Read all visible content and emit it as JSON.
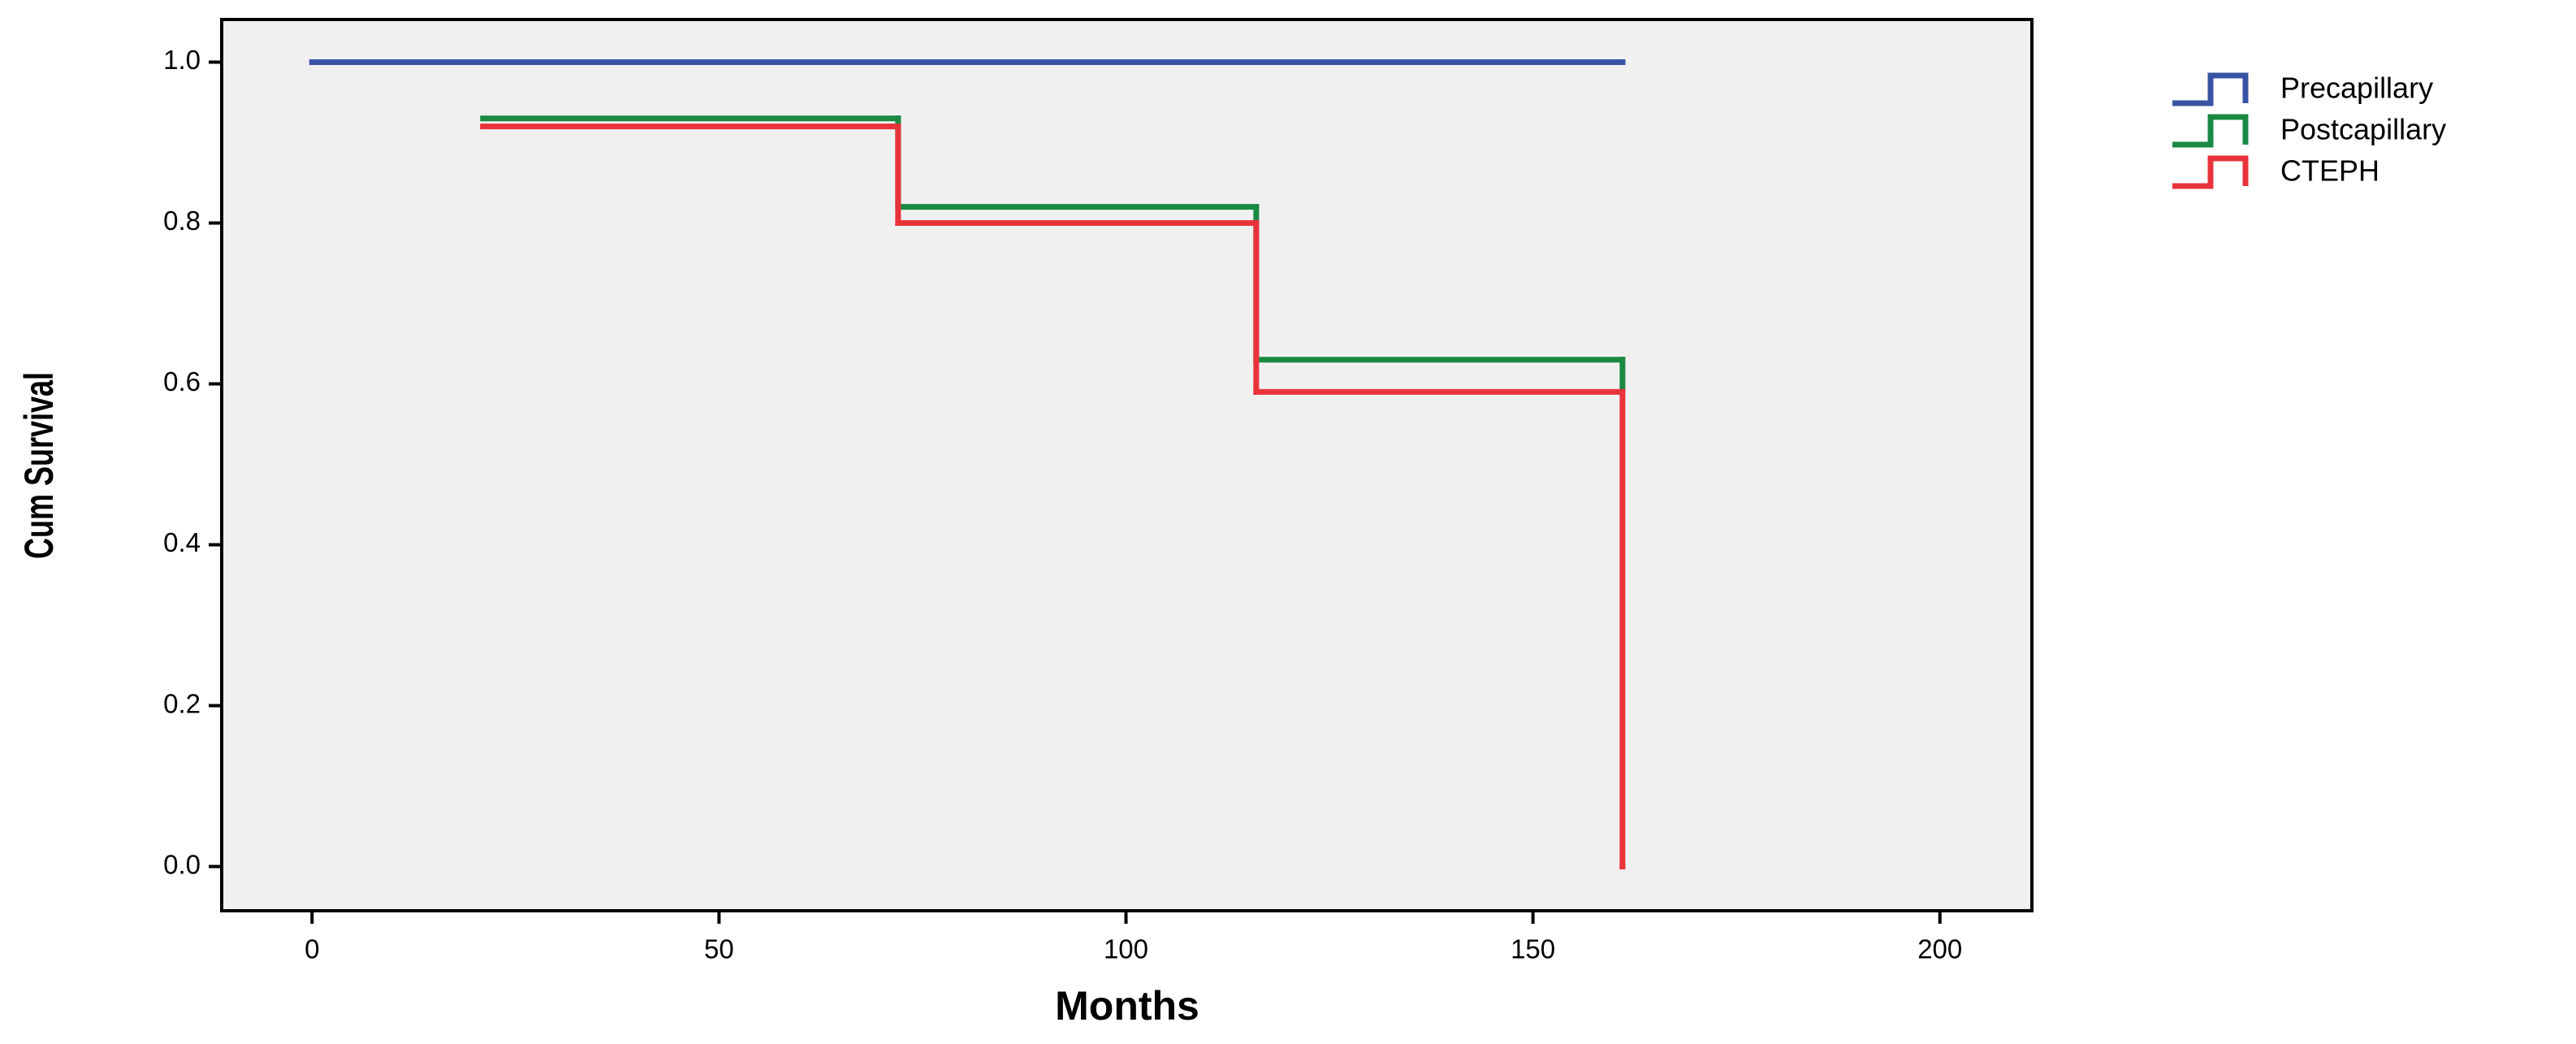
{
  "chart_data": {
    "type": "step",
    "x_label": "Months",
    "y_label": "Cum Survival",
    "xlim": [
      -11.1,
      211.3
    ],
    "ylim": [
      -0.055,
      1.053
    ],
    "xticks": [
      0,
      50,
      100,
      150,
      200
    ],
    "yticks": [
      {
        "value": 0,
        "label": "0.0"
      },
      {
        "value": 0.2,
        "label": "0.2"
      },
      {
        "value": 0.4,
        "label": "0.4"
      },
      {
        "value": 0.6,
        "label": "0.6"
      },
      {
        "value": 0.8,
        "label": "0.8"
      },
      {
        "value": 1,
        "label": "1.0"
      }
    ],
    "grid": false,
    "legend": "outside-right",
    "series": [
      {
        "name": "Precapillary",
        "color": "#3953a4",
        "x": [
          0,
          161
        ],
        "values": [
          1.0,
          1.0
        ]
      },
      {
        "name": "Postcapillary",
        "color": "#1a8a43",
        "x": [
          21,
          72,
          116,
          161
        ],
        "values": [
          0.93,
          0.82,
          0.63,
          0.59
        ]
      },
      {
        "name": "CTEPH",
        "color": "#e8333a",
        "x": [
          21,
          72,
          116,
          161
        ],
        "values": [
          0.92,
          0.8,
          0.59,
          0.0
        ]
      }
    ]
  }
}
